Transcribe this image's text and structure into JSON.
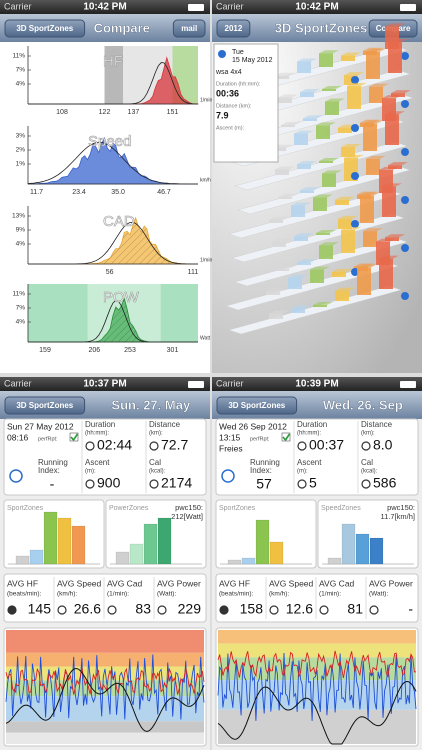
{
  "screens": [
    {
      "status": {
        "carrier": "Carrier",
        "time": "10:42 PM"
      },
      "nav": {
        "back": "3D SportZones",
        "title": "Compare",
        "action": "mail"
      },
      "charts": [
        {
          "label": "HF",
          "yticks": [
            "11%",
            "7%",
            "4%"
          ],
          "xticks": [
            "108",
            "122",
            "137",
            "151"
          ],
          "unit": "1/min"
        },
        {
          "label": "Speed",
          "yticks": [
            "3%",
            "2%",
            "1%"
          ],
          "xticks": [
            "11.7",
            "23.4",
            "35.0",
            "46.7"
          ],
          "unit": "km/h"
        },
        {
          "label": "CAD",
          "yticks": [
            "13%",
            "9%",
            "4%"
          ],
          "xticks": [
            "56",
            "111"
          ],
          "unit": "1/min"
        },
        {
          "label": "POW",
          "yticks": [
            "11%",
            "7%",
            "4%"
          ],
          "xticks": [
            "159",
            "206",
            "253",
            "301"
          ],
          "unit": "Watt"
        }
      ]
    },
    {
      "status": {
        "carrier": "Carrier",
        "time": "10:42 PM"
      },
      "nav": {
        "back": "2012",
        "title": "3D SportZones",
        "action": "Compare"
      },
      "popup": {
        "day": "Tue",
        "date": "15 May 2012",
        "name": "wsa 4x4",
        "duration_label": "Duration (hh:mm):",
        "duration": "00:36",
        "distance_label": "Distance (km):",
        "distance": "7.9",
        "ascent_label": "Ascent (m):"
      }
    },
    {
      "status": {
        "carrier": "Carrier",
        "time": "10:37 PM"
      },
      "nav": {
        "back": "3D SportZones",
        "title": "Sun. 27. May"
      },
      "summary": {
        "date": "Sun 27 May 2012",
        "time": "08:16",
        "perf": "perfRpt:",
        "duration_label": "Duration",
        "duration_unit": "(hh:mm):",
        "duration": "02:44",
        "distance_label": "Distance",
        "distance_unit": "(km):",
        "distance": "72.7",
        "index_label": "Running",
        "index_unit": "Index:",
        "index": "-",
        "ascent_label": "Ascent",
        "ascent_unit": "(m):",
        "ascent": "900",
        "cal_label": "Cal",
        "cal_unit": "(kcal):",
        "cal": "2174"
      },
      "zones": [
        {
          "title": "SportZones",
          "values": [
            8,
            14,
            52,
            46,
            38
          ]
        },
        {
          "title": "PowerZones",
          "values": [
            12,
            20,
            40,
            46
          ],
          "pwc_label": "pwc150:",
          "pwc_value": "212[Watt]"
        }
      ],
      "averages": [
        {
          "label": "AVG HF",
          "unit": "(beats/min):",
          "value": "145"
        },
        {
          "label": "AVG Speed",
          "unit": "(km/h):",
          "value": "26.6"
        },
        {
          "label": "AVG Cad",
          "unit": "(1/min):",
          "value": "83"
        },
        {
          "label": "AVG Power",
          "unit": "(Watt):",
          "value": "229"
        }
      ]
    },
    {
      "status": {
        "carrier": "Carrier",
        "time": "10:39 PM"
      },
      "nav": {
        "back": "3D SportZones",
        "title": "Wed. 26. Sep"
      },
      "summary": {
        "date": "Wed 26 Sep 2012",
        "time": "13:15",
        "perf": "perfRpt:",
        "note": "Freies",
        "duration_label": "Duration",
        "duration_unit": "(hh:mm):",
        "duration": "00:37",
        "distance_label": "Distance",
        "distance_unit": "(km):",
        "distance": "8.0",
        "index_label": "Running",
        "index_unit": "Index:",
        "index": "57",
        "ascent_label": "Ascent",
        "ascent_unit": "(m):",
        "ascent": "5",
        "cal_label": "Cal",
        "cal_unit": "(kcal):",
        "cal": "586"
      },
      "zones": [
        {
          "title": "SportZones",
          "values": [
            4,
            6,
            44,
            22
          ]
        },
        {
          "title": "SpeedZones",
          "values": [
            6,
            40,
            30,
            26
          ],
          "pwc_label": "pwc150:",
          "pwc_value": "11.7[km/h]"
        }
      ],
      "averages": [
        {
          "label": "AVG HF",
          "unit": "(beats/min):",
          "value": "158"
        },
        {
          "label": "AVG Speed",
          "unit": "(km/h):",
          "value": "12.6"
        },
        {
          "label": "AVG Cad",
          "unit": "(1/min):",
          "value": "81"
        },
        {
          "label": "AVG Power",
          "unit": "(Watt):",
          "value": "-"
        }
      ]
    }
  ]
}
